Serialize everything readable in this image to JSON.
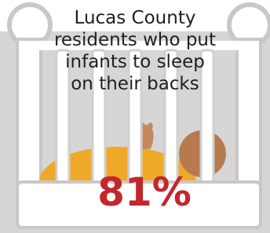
{
  "title_lines": [
    "Lucas County",
    "residents who put",
    "infants to sleep",
    "on their backs"
  ],
  "stat": "81%"
}
